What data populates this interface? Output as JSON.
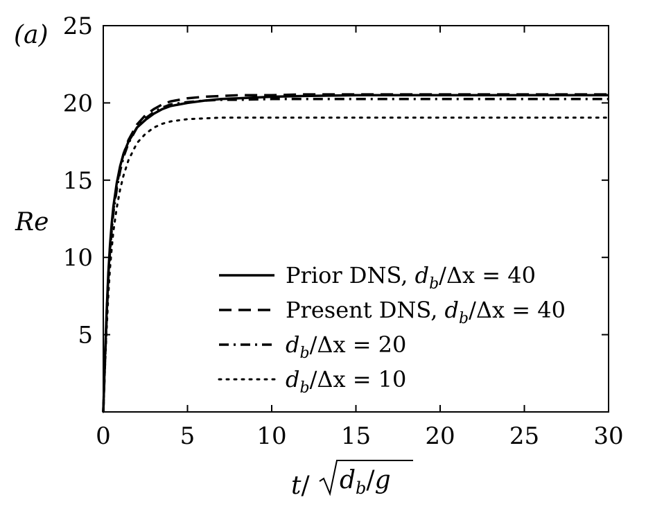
{
  "chart_data": {
    "type": "line",
    "panel_label": "(a)",
    "xlabel": "t/√(d_b/g)",
    "ylabel": "Re",
    "xlim": [
      0,
      30
    ],
    "ylim": [
      0,
      25
    ],
    "xticks": [
      0,
      5,
      10,
      15,
      20,
      25,
      30
    ],
    "yticks": [
      5,
      10,
      15,
      20,
      25
    ],
    "grid": false,
    "legend_position": "lower-right",
    "series": [
      {
        "name": "Prior DNS, d_b/Δx = 40",
        "legend_parts": {
          "prefix": "Prior DNS, ",
          "var": "d",
          "sub": "b",
          "rest": "/Δx = 40"
        },
        "style": "solid",
        "x": [
          0,
          0.1,
          0.2,
          0.3,
          0.4,
          0.5,
          0.6,
          0.8,
          1.0,
          1.2,
          1.5,
          2.0,
          2.5,
          3.0,
          3.5,
          4.0,
          5.0,
          6.0,
          7.0,
          8.0,
          10.0,
          12.0,
          15.0,
          20.0,
          25.0,
          30.0
        ],
        "y": [
          0,
          3.5,
          6.5,
          9.0,
          10.8,
          12.2,
          13.3,
          14.8,
          15.9,
          16.7,
          17.5,
          18.4,
          18.9,
          19.3,
          19.6,
          19.8,
          20.0,
          20.15,
          20.25,
          20.3,
          20.4,
          20.45,
          20.5,
          20.5,
          20.5,
          20.5
        ]
      },
      {
        "name": "Present DNS, d_b/Δx = 40",
        "legend_parts": {
          "prefix": "Present DNS, ",
          "var": "d",
          "sub": "b",
          "rest": "/Δx = 40"
        },
        "style": "dashed",
        "x": [
          0,
          0.1,
          0.2,
          0.3,
          0.4,
          0.5,
          0.6,
          0.8,
          1.0,
          1.2,
          1.5,
          2.0,
          2.5,
          3.0,
          3.5,
          4.0,
          5.0,
          6.0,
          7.0,
          8.0,
          10.0,
          12.0,
          15.0,
          20.0,
          25.0,
          30.0
        ],
        "y": [
          0,
          3.3,
          6.3,
          8.8,
          10.6,
          12.0,
          13.1,
          14.6,
          15.8,
          16.7,
          17.6,
          18.6,
          19.2,
          19.6,
          19.9,
          20.1,
          20.3,
          20.4,
          20.45,
          20.5,
          20.5,
          20.55,
          20.55,
          20.55,
          20.55,
          20.55
        ]
      },
      {
        "name": "d_b/Δx = 20",
        "legend_parts": {
          "prefix": "",
          "var": "d",
          "sub": "b",
          "rest": "/Δx = 20"
        },
        "style": "dashdot",
        "x": [
          0,
          0.1,
          0.2,
          0.3,
          0.4,
          0.5,
          0.6,
          0.8,
          1.0,
          1.2,
          1.5,
          2.0,
          2.5,
          3.0,
          3.5,
          4.0,
          5.0,
          6.0,
          7.0,
          8.0,
          10.0,
          12.0,
          15.0,
          20.0,
          25.0,
          30.0
        ],
        "y": [
          0,
          3.2,
          6.1,
          8.6,
          10.4,
          11.8,
          12.9,
          14.4,
          15.6,
          16.5,
          17.4,
          18.4,
          19.0,
          19.4,
          19.7,
          19.9,
          20.05,
          20.15,
          20.2,
          20.2,
          20.25,
          20.25,
          20.25,
          20.25,
          20.25,
          20.25
        ]
      },
      {
        "name": "d_b/Δx = 10",
        "legend_parts": {
          "prefix": "",
          "var": "d",
          "sub": "b",
          "rest": "/Δx = 10"
        },
        "style": "dotted",
        "x": [
          0,
          0.1,
          0.2,
          0.3,
          0.4,
          0.5,
          0.6,
          0.8,
          1.0,
          1.2,
          1.5,
          2.0,
          2.5,
          3.0,
          3.5,
          4.0,
          5.0,
          6.0,
          7.0,
          8.0,
          10.0,
          12.0,
          15.0,
          20.0,
          25.0,
          30.0
        ],
        "y": [
          0,
          2.8,
          5.4,
          7.6,
          9.3,
          10.6,
          11.7,
          13.2,
          14.4,
          15.3,
          16.3,
          17.4,
          18.0,
          18.4,
          18.65,
          18.8,
          18.95,
          19.0,
          19.05,
          19.05,
          19.05,
          19.05,
          19.05,
          19.05,
          19.05,
          19.05
        ]
      }
    ]
  }
}
